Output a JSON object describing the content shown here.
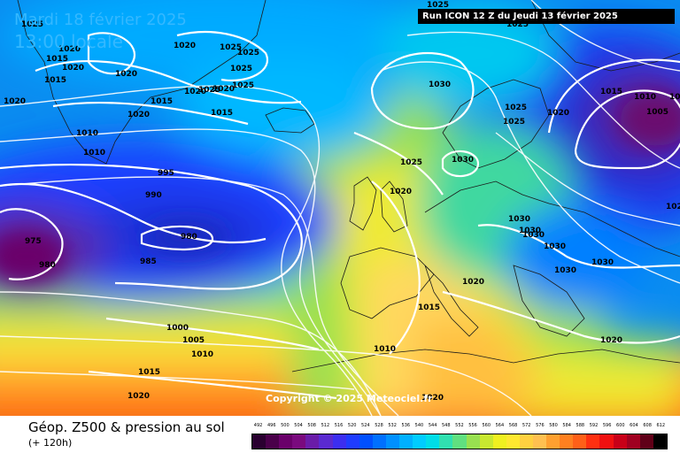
{
  "header": {
    "date": "Mardi 18 février 2025",
    "time": "13:00 locale",
    "run": "Run ICON 12 Z du Jeudi 13 février 2025"
  },
  "copyright": "Copyright © 2025 Meteociel.fr",
  "footer": {
    "title": "Géop. Z500 & pression au sol",
    "subtitle": "(+ 120h)"
  },
  "legend": {
    "values": [
      "492",
      "496",
      "500",
      "504",
      "508",
      "512",
      "516",
      "520",
      "524",
      "528",
      "532",
      "536",
      "540",
      "544",
      "548",
      "552",
      "556",
      "560",
      "564",
      "568",
      "572",
      "576",
      "580",
      "584",
      "588",
      "592",
      "596",
      "600",
      "604",
      "608",
      "612"
    ],
    "colors": [
      "#2a0030",
      "#4a004a",
      "#6a006a",
      "#7a0a7e",
      "#6a1ca8",
      "#5a2ad0",
      "#3c2ef0",
      "#1f3cff",
      "#0050ff",
      "#0070ff",
      "#0090ff",
      "#00b0ff",
      "#00ccff",
      "#00dde8",
      "#30e0b0",
      "#60e080",
      "#98e050",
      "#c8e830",
      "#f0f020",
      "#ffe830",
      "#ffd040",
      "#ffc050",
      "#ffa030",
      "#ff8020",
      "#ff6018",
      "#ff3010",
      "#f01010",
      "#c80018",
      "#a00020",
      "#600018",
      "#000000"
    ]
  },
  "isobars": [
    {
      "text": "1020",
      "kind": "blue"
    },
    {
      "text": "1020",
      "kind": "blue"
    },
    {
      "text": "1020",
      "kind": "blue"
    },
    {
      "text": "1025",
      "kind": "blue"
    },
    {
      "text": "1025",
      "kind": "blue"
    },
    {
      "text": "1015",
      "kind": "blue"
    },
    {
      "text": "1020",
      "kind": "blue"
    },
    {
      "text": "1020",
      "kind": "blue"
    },
    {
      "text": "1025",
      "kind": "blue"
    },
    {
      "text": "1015",
      "kind": "blue"
    },
    {
      "text": "1025",
      "kind": "blue"
    },
    {
      "text": "1020",
      "kind": "blue"
    },
    {
      "text": "1025",
      "kind": "blue"
    },
    {
      "text": "1020",
      "kind": "blue"
    },
    {
      "text": "1015",
      "kind": "blue"
    },
    {
      "text": "1015",
      "kind": "blue"
    },
    {
      "text": "1020",
      "kind": "blue"
    },
    {
      "text": "1010",
      "kind": "blue"
    },
    {
      "text": "1010",
      "kind": "blue"
    },
    {
      "text": "995",
      "kind": "blue"
    },
    {
      "text": "990",
      "kind": "blue"
    },
    {
      "text": "980",
      "kind": "blue"
    },
    {
      "text": "975",
      "kind": "blue"
    },
    {
      "text": "980",
      "kind": "blue"
    },
    {
      "text": "985",
      "kind": "blue"
    },
    {
      "text": "1000",
      "kind": "blue"
    },
    {
      "text": "1005",
      "kind": "blue"
    },
    {
      "text": "1010",
      "kind": "blue"
    },
    {
      "text": "1015",
      "kind": "blue"
    },
    {
      "text": "1020",
      "kind": "blue"
    },
    {
      "text": "1030",
      "kind": "blue"
    },
    {
      "text": "1025",
      "kind": "blue"
    },
    {
      "text": "1020",
      "kind": "blue"
    },
    {
      "text": "1025",
      "kind": "blue"
    },
    {
      "text": "1030",
      "kind": "blue"
    },
    {
      "text": "1025",
      "kind": "blue"
    },
    {
      "text": "1025",
      "kind": "blue"
    },
    {
      "text": "1025",
      "kind": "blue"
    },
    {
      "text": "1020",
      "kind": "blue"
    },
    {
      "text": "1015",
      "kind": "blue"
    },
    {
      "text": "1010",
      "kind": "blue"
    },
    {
      "text": "1005",
      "kind": "blue"
    },
    {
      "text": "1030",
      "kind": "blue"
    },
    {
      "text": "1030",
      "kind": "blue"
    },
    {
      "text": "1030",
      "kind": "blue"
    },
    {
      "text": "1030",
      "kind": "blue"
    },
    {
      "text": "1030",
      "kind": "blue"
    },
    {
      "text": "1030",
      "kind": "blue"
    },
    {
      "text": "1020",
      "kind": "blue"
    },
    {
      "text": "1015",
      "kind": "blue"
    },
    {
      "text": "1010",
      "kind": "blue"
    },
    {
      "text": "1020",
      "kind": "blue"
    },
    {
      "text": "1020",
      "kind": "blue"
    },
    {
      "text": "1020",
      "kind": "blue"
    },
    {
      "text": "1025",
      "kind": "blue"
    },
    {
      "text": "102",
      "kind": "blue"
    }
  ]
}
